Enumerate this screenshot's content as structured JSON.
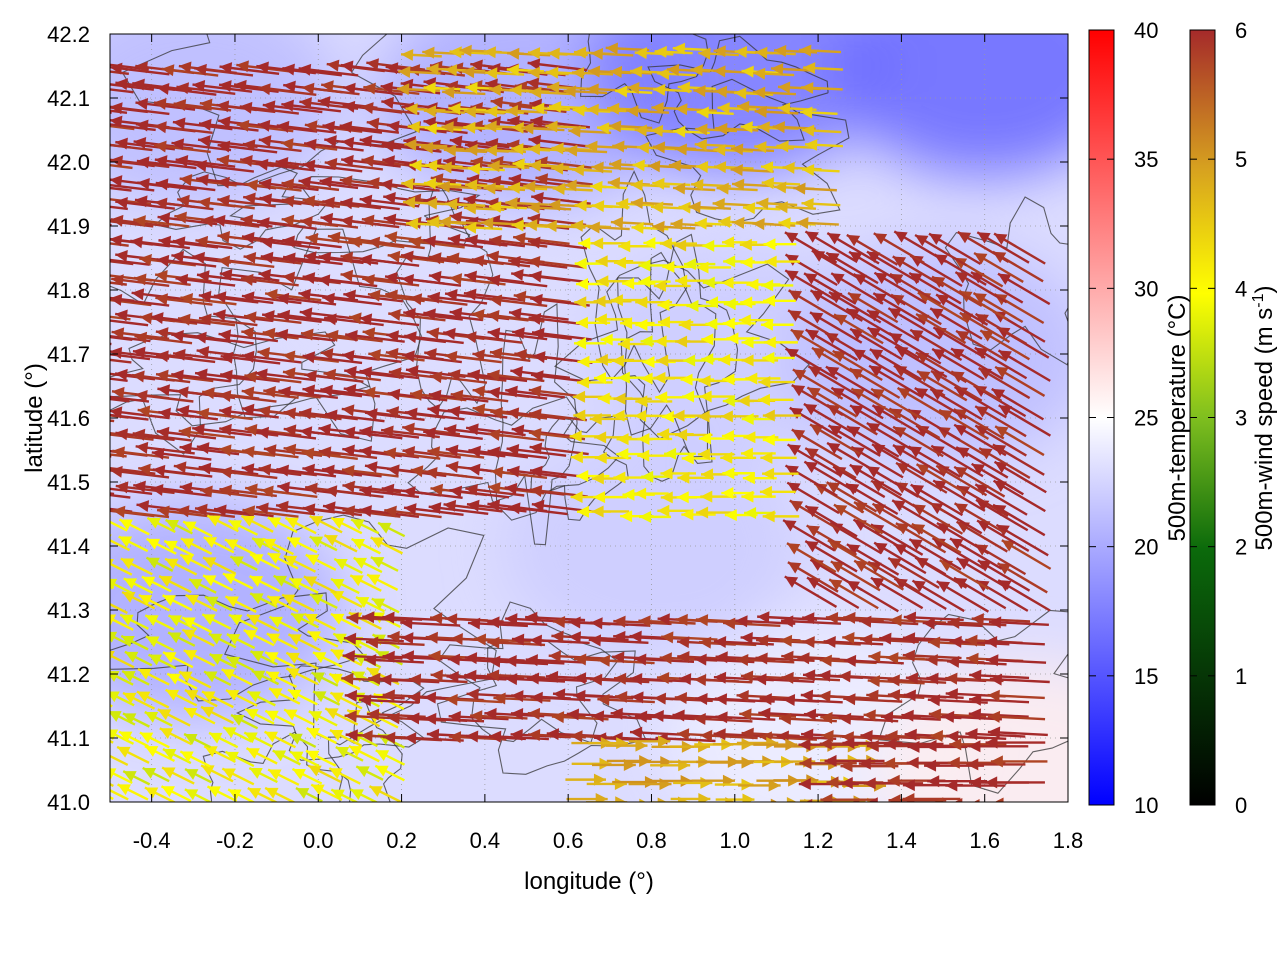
{
  "chart_data": {
    "type": "heatmap",
    "title": "",
    "xlabel": "longitude (°)",
    "ylabel": "latitude (°)",
    "xlim": [
      -0.5,
      1.8
    ],
    "ylim": [
      41.0,
      42.2
    ],
    "x_ticks": [
      -0.4,
      -0.2,
      0.0,
      0.2,
      0.4,
      0.6,
      0.8,
      1.0,
      1.2,
      1.4,
      1.6,
      1.8
    ],
    "x_tick_labels": [
      "-0.4",
      "-0.2",
      "0.0",
      "0.2",
      "0.4",
      "0.6",
      "0.8",
      "1.0",
      "1.2",
      "1.4",
      "1.6",
      "1.8"
    ],
    "y_ticks": [
      41.0,
      41.1,
      41.2,
      41.3,
      41.4,
      41.5,
      41.6,
      41.7,
      41.8,
      41.9,
      42.0,
      42.1,
      42.2
    ],
    "y_tick_labels": [
      "41.0",
      "41.1",
      "41.2",
      "41.3",
      "41.4",
      "41.5",
      "41.6",
      "41.7",
      "41.8",
      "41.9",
      "42.0",
      "42.1",
      "42.2"
    ],
    "grid": true,
    "temperature_colorbar": {
      "label": "500m-temperature (°C)",
      "range": [
        10,
        40
      ],
      "ticks": [
        10,
        15,
        20,
        25,
        30,
        35,
        40
      ],
      "tick_labels": [
        "10",
        "15",
        "20",
        "25",
        "30",
        "35",
        "40"
      ],
      "colors": [
        "#0000ff",
        "#ffffff",
        "#ff0000"
      ]
    },
    "windspeed_colorbar": {
      "label_main": "500m-wind speed (m s",
      "label_sup": "-1",
      "label_end": ")",
      "range": [
        0,
        6
      ],
      "ticks": [
        0,
        1,
        2,
        3,
        4,
        5,
        6
      ],
      "tick_labels": [
        "0",
        "1",
        "2",
        "3",
        "4",
        "5",
        "6"
      ],
      "colors": [
        "#000000",
        "#0b6a0b",
        "#7fbf1f",
        "#ffff00",
        "#d7a21f",
        "#c06f1a",
        "#a52a2a"
      ]
    },
    "temperature_field": {
      "description_values": "approximate 500 m temperature (°C) per region",
      "samples": [
        {
          "lon": -0.3,
          "lat": 42.1,
          "t": 21
        },
        {
          "lon": 0.5,
          "lat": 42.1,
          "t": 20
        },
        {
          "lon": 1.0,
          "lat": 42.15,
          "t": 17
        },
        {
          "lon": 1.6,
          "lat": 42.15,
          "t": 16
        },
        {
          "lon": 0.2,
          "lat": 41.8,
          "t": 23
        },
        {
          "lon": 1.0,
          "lat": 41.7,
          "t": 22
        },
        {
          "lon": 1.5,
          "lat": 41.7,
          "t": 21
        },
        {
          "lon": -0.3,
          "lat": 41.3,
          "t": 20
        },
        {
          "lon": 0.8,
          "lat": 41.4,
          "t": 22
        },
        {
          "lon": 1.2,
          "lat": 41.1,
          "t": 24
        },
        {
          "lon": 1.7,
          "lat": 41.05,
          "t": 26
        }
      ]
    },
    "wind_regions": [
      {
        "lon_range": [
          -0.5,
          0.7
        ],
        "lat_range": [
          41.45,
          42.15
        ],
        "u": -1.0,
        "v": 0.12,
        "speed": 6.0
      },
      {
        "lon_range": [
          1.25,
          1.8
        ],
        "lat_range": [
          41.3,
          41.85
        ],
        "u": -0.85,
        "v": 0.5,
        "speed": 6.0
      },
      {
        "lon_range": [
          0.7,
          1.2
        ],
        "lat_range": [
          41.45,
          41.9
        ],
        "u": -1.0,
        "v": 0.0,
        "speed": 3.2
      },
      {
        "lon_range": [
          0.3,
          1.3
        ],
        "lat_range": [
          41.9,
          42.2
        ],
        "u": -1.0,
        "v": 0.05,
        "speed": 3.8
      },
      {
        "lon_range": [
          -0.5,
          0.2
        ],
        "lat_range": [
          41.0,
          41.45
        ],
        "u": -0.8,
        "v": 0.4,
        "speed": 3.0
      },
      {
        "lon_range": [
          0.2,
          1.8
        ],
        "lat_range": [
          41.1,
          41.3
        ],
        "u": -1.0,
        "v": 0.05,
        "speed": 6.0
      },
      {
        "lon_range": [
          0.6,
          1.3
        ],
        "lat_range": [
          41.0,
          41.12
        ],
        "u": 1.0,
        "v": 0.0,
        "speed": 4.0
      },
      {
        "lon_range": [
          1.3,
          1.8
        ],
        "lat_range": [
          41.0,
          41.1
        ],
        "u": -1.0,
        "v": 0.0,
        "speed": 6.0
      }
    ]
  }
}
